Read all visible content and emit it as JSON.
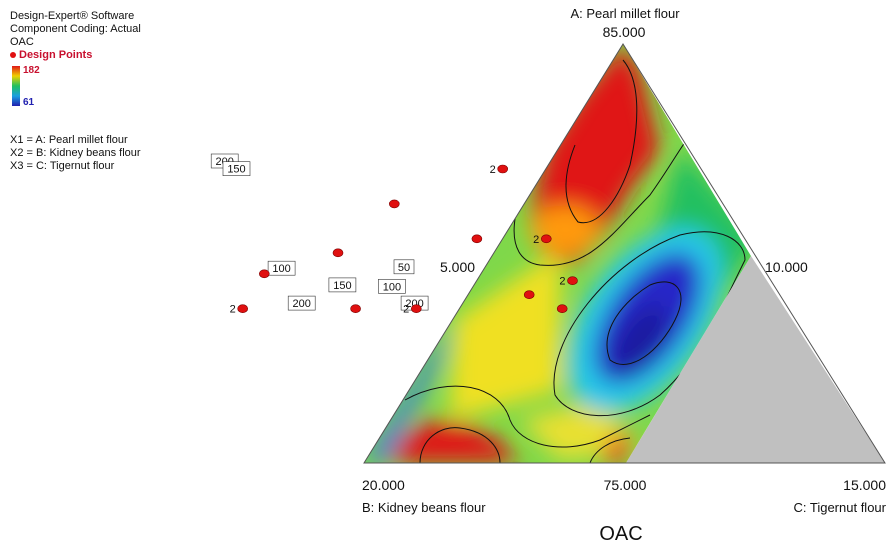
{
  "legend": {
    "software": "Design-Expert® Software",
    "coding": "Component Coding: Actual",
    "response": "OAC",
    "design_points_label": "Design Points",
    "scale_max": "182",
    "scale_min": "61",
    "x1": "X1 = A: Pearl millet flour",
    "x2": "X2 = B: Kidney beans flour",
    "x3": "X3 = C: Tigernut flour"
  },
  "colors": {
    "high": "#e01818",
    "mid_high": "#f0d000",
    "mid": "#20c060",
    "mid_low": "#1a9fe0",
    "low": "#2020b0",
    "infeasible": "#c0c0c0",
    "design_point": "#e01010"
  },
  "chart_data": {
    "type": "ternary-contour",
    "title": "OAC",
    "components": [
      {
        "label": "A: Pearl millet flour",
        "max": 85.0
      },
      {
        "label": "B: Kidney beans flour",
        "max": 20.0
      },
      {
        "label": "C: Tigernut flour",
        "max": 15.0
      }
    ],
    "tick_labels": {
      "a_top": "85.000",
      "left_mid": "5.000",
      "right_mid": "10.000",
      "b_bottom_left": "20.000",
      "bottom_mid": "75.000",
      "c_bottom_right": "15.000"
    },
    "contour_levels": [
      50,
      100,
      150,
      200
    ],
    "contour_labels": [
      {
        "value": "200",
        "a": 80.05,
        "b": 10.0,
        "c": 4.95
      },
      {
        "value": "150",
        "a": 79.5,
        "b": 9.6,
        "c": 5.9
      },
      {
        "value": "100",
        "a": 77.9,
        "b": 16.3,
        "c": 5.8
      },
      {
        "value": "50",
        "a": 78.0,
        "b": 9.2,
        "c": 12.8
      },
      {
        "value": "100",
        "a": 76.6,
        "b": 10.6,
        "c": 12.8
      },
      {
        "value": "150",
        "a": 76.7,
        "b": 13.4,
        "c": 9.9
      },
      {
        "value": "200",
        "a": 75.4,
        "b": 16.4,
        "c": 8.2
      },
      {
        "value": "200",
        "a": 75.4,
        "b": 9.9,
        "c": 14.7
      }
    ],
    "design_points": [
      {
        "a": 85.0,
        "b": 0.0,
        "c": 15.0,
        "replicates": "2"
      },
      {
        "a": 82.5,
        "b": 7.5,
        "c": 10.0
      },
      {
        "a": 80.0,
        "b": 0.0,
        "c": 20.0,
        "replicates": "2"
      },
      {
        "a": 80.0,
        "b": 4.0,
        "c": 16.0
      },
      {
        "a": 79.0,
        "b": 12.5,
        "c": 8.5
      },
      {
        "a": 77.5,
        "b": 17.5,
        "c": 5.0
      },
      {
        "a": 77.0,
        "b": 0.0,
        "c": 23.0,
        "replicates": "2"
      },
      {
        "a": 75.0,
        "b": 20.0,
        "c": 5.0,
        "replicates": "2"
      },
      {
        "a": 75.0,
        "b": 13.5,
        "c": 11.5
      },
      {
        "a": 75.0,
        "b": 10.0,
        "c": 15.0,
        "replicates": "2"
      },
      {
        "a": 75.0,
        "b": 1.6,
        "c": 23.4
      },
      {
        "a": 76.0,
        "b": 3.0,
        "c": 21.0
      }
    ]
  }
}
